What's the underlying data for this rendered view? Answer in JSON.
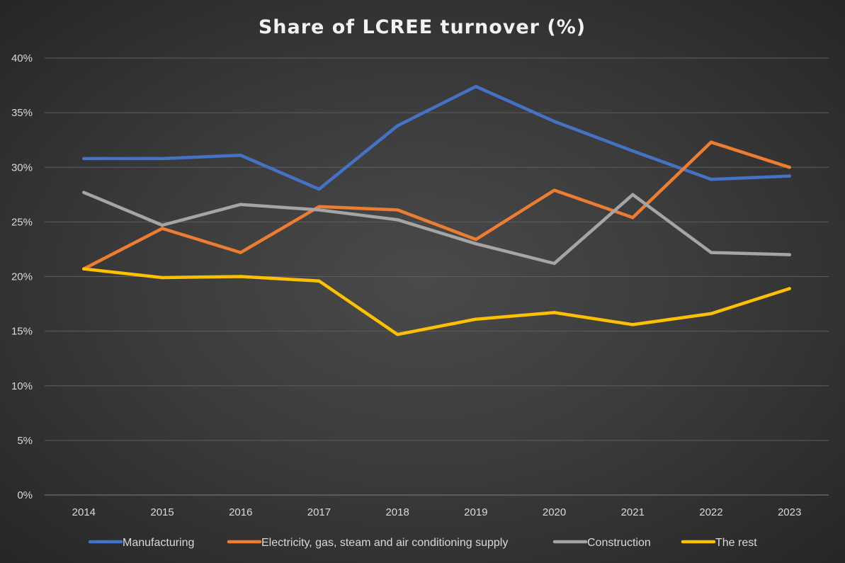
{
  "chart_data": {
    "type": "line",
    "title": "Share of LCREE turnover (%)",
    "xlabel": "",
    "ylabel": "",
    "categories": [
      "2014",
      "2015",
      "2016",
      "2017",
      "2018",
      "2019",
      "2020",
      "2021",
      "2022",
      "2023"
    ],
    "y_ticks": [
      "0%",
      "5%",
      "10%",
      "15%",
      "20%",
      "25%",
      "30%",
      "35%",
      "40%"
    ],
    "ylim": [
      0,
      40
    ],
    "grid": true,
    "legend_position": "bottom",
    "series": [
      {
        "name": "Manufacturing",
        "color": "#4472c4",
        "values": [
          30.8,
          30.8,
          31.1,
          28.0,
          33.8,
          37.4,
          34.2,
          31.5,
          28.9,
          29.2
        ]
      },
      {
        "name": "Electricity, gas, steam and air conditioning supply",
        "color": "#ed7d31",
        "values": [
          20.7,
          24.4,
          22.2,
          26.4,
          26.1,
          23.4,
          27.9,
          25.4,
          32.3,
          30.0
        ]
      },
      {
        "name": "Construction",
        "color": "#a5a5a5",
        "values": [
          27.7,
          24.7,
          26.6,
          26.1,
          25.2,
          23.0,
          21.2,
          27.5,
          22.2,
          22.0
        ]
      },
      {
        "name": "The rest",
        "color": "#ffc000",
        "values": [
          20.7,
          19.9,
          20.0,
          19.6,
          14.7,
          16.1,
          16.7,
          15.6,
          16.6,
          18.9
        ]
      }
    ]
  }
}
